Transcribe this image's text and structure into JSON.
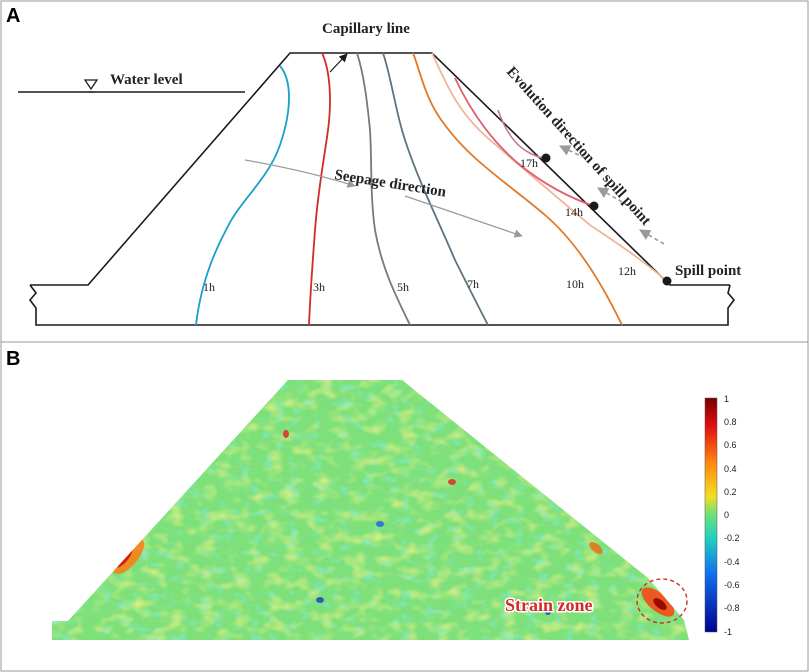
{
  "panel_a": {
    "letter": "A",
    "water_level_label": "Water level",
    "capillary_label": "Capillary line",
    "seepage_label": "Seepage direction",
    "evolution_label": "Evolution direction of spill point",
    "spill_point_label": "Spill point",
    "seepage_lines": [
      {
        "label": "1h",
        "color": "#1aa0c8"
      },
      {
        "label": "3h",
        "color": "#d22a2a"
      },
      {
        "label": "5h",
        "color": "#7a7a6e"
      },
      {
        "label": "7h",
        "color": "#5c7480"
      },
      {
        "label": "10h",
        "color": "#e07a2a"
      },
      {
        "label": "12h",
        "color": "#f0b49a"
      },
      {
        "label": "14h",
        "color": "#e06070"
      },
      {
        "label": "17h",
        "color": "#c87890"
      }
    ],
    "colors": {
      "outline": "#1a1a1a",
      "arrow": "#9a9a9a",
      "point": "#1a1a1a"
    }
  },
  "panel_b": {
    "letter": "B",
    "strain_label": "Strain zone",
    "colorbar_ticks": [
      "1",
      "0.8",
      "0.6",
      "0.4",
      "0.2",
      "0",
      "-0.2",
      "-0.4",
      "-0.6",
      "-0.8",
      "-1"
    ],
    "colors": {
      "strain_label": "#d42a2a",
      "circle": "#c83030"
    }
  }
}
